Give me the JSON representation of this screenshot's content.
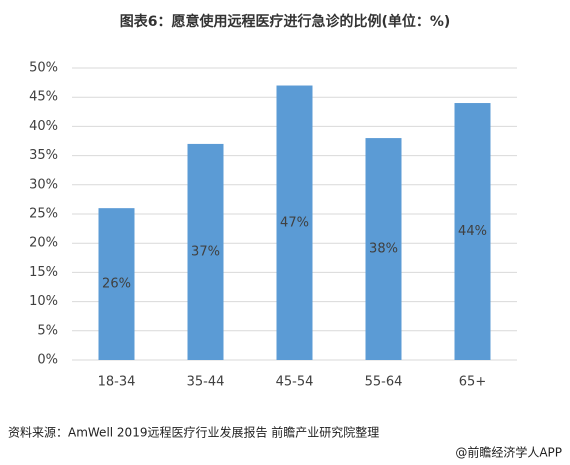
{
  "chart_data": {
    "type": "bar",
    "title": "图表6：愿意使用远程医疗进行急诊的比例(单位：%)",
    "categories": [
      "18-34",
      "35-44",
      "45-54",
      "55-64",
      "65+"
    ],
    "values": [
      26,
      37,
      47,
      38,
      44
    ],
    "value_labels": [
      "26%",
      "37%",
      "47%",
      "38%",
      "44%"
    ],
    "color": "#5b9bd5",
    "ylim": [
      0,
      50
    ],
    "yticks": [
      {
        "value": 0,
        "label": "0%"
      },
      {
        "value": 5,
        "label": "5%"
      },
      {
        "value": 10,
        "label": "10%"
      },
      {
        "value": 15,
        "label": "15%"
      },
      {
        "value": 20,
        "label": "20%"
      },
      {
        "value": 25,
        "label": "25%"
      },
      {
        "value": 30,
        "label": "30%"
      },
      {
        "value": 35,
        "label": "35%"
      },
      {
        "value": 40,
        "label": "40%"
      },
      {
        "value": 45,
        "label": "45%"
      },
      {
        "value": 50,
        "label": "50%"
      }
    ],
    "grid": true,
    "source": "资料来源：AmWell 2019远程医疗行业发展报告 前瞻产业研究院整理",
    "footer": "@前瞻经济学人APP"
  }
}
